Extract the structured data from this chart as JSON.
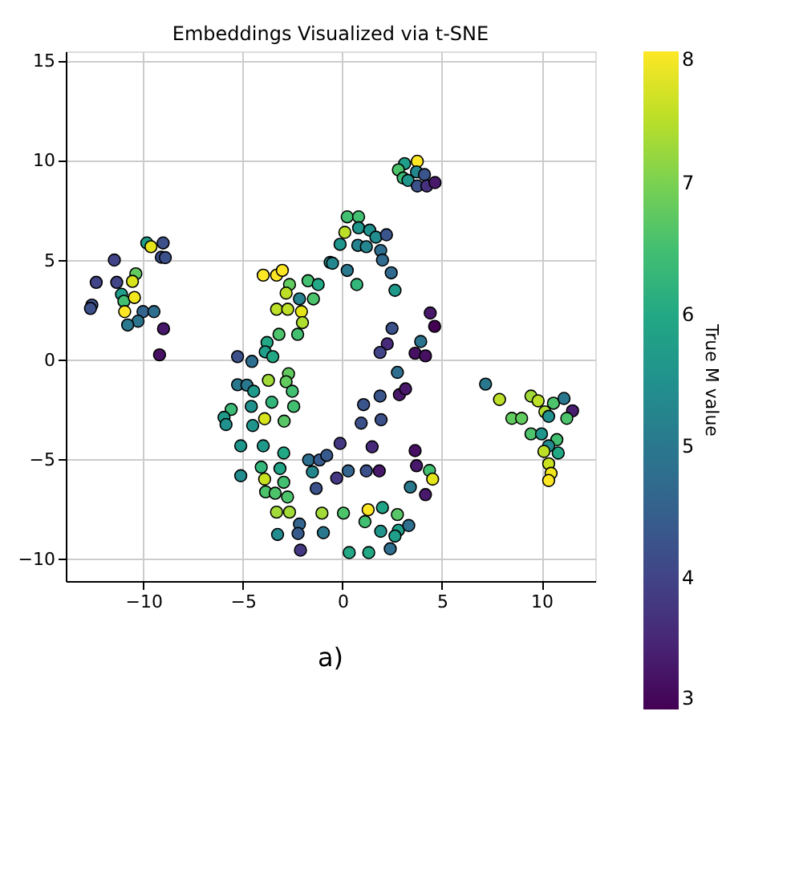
{
  "chart_data": {
    "type": "scatter",
    "title": "Embeddings Visualized via t-SNE",
    "clabel": "True M value",
    "annotations": [
      "a)"
    ],
    "xlim": [
      -13.9,
      12.7
    ],
    "ylim": [
      -11.1,
      15.5
    ],
    "xticks": [
      -10,
      -5,
      0,
      5,
      10
    ],
    "yticks": [
      -10,
      -5,
      0,
      5,
      10,
      15
    ],
    "clim": [
      3,
      8
    ],
    "cticks": [
      3,
      4,
      5,
      6,
      7,
      8
    ],
    "grid": true,
    "marker": "circle",
    "x": [
      -9.83,
      -9.62,
      -9.01,
      -9.1,
      -8.9,
      -11.46,
      -12.37,
      -11.34,
      -10.38,
      -10.55,
      -11.1,
      -10.98,
      -10.45,
      -10.94,
      -12.59,
      -12.66,
      -10.02,
      -9.47,
      -10.27,
      -10.79,
      -8.99,
      -9.19,
      0.24,
      0.81,
      0.12,
      0.81,
      1.37,
      1.68,
      2.21,
      -0.12,
      0.77,
      1.2,
      1.92,
      2.01,
      -0.62,
      -0.5,
      0.24,
      2.45,
      0.72,
      2.64,
      -3.98,
      -3.31,
      -3.02,
      -2.66,
      -2.83,
      -1.73,
      -1.22,
      -2.16,
      -1.46,
      -3.31,
      -2.75,
      -2.06,
      -2.01,
      -3.19,
      -2.25,
      -3.79,
      -3.88,
      -3.5,
      -5.27,
      -4.55,
      -3.72,
      -2.71,
      -2.83,
      -2.52,
      -5.27,
      -4.8,
      -4.46,
      -3.55,
      -2.45,
      -5.59,
      -5.95,
      -5.85,
      -4.58,
      -3.91,
      -2.93,
      -4.51,
      -5.11,
      -3.98,
      -2.95,
      -5.11,
      -4.08,
      -3.14,
      -3.91,
      -3.86,
      -3.38,
      -2.95,
      -2.76,
      -3.31,
      -2.66,
      -2.16,
      -2.23,
      -3.26,
      -2.11,
      -1.03,
      -0.96,
      -1.7,
      -1.15,
      -0.79,
      -1.51,
      -1.32,
      -0.12,
      -0.29,
      0.29,
      0.05,
      0.34,
      1.2,
      1.85,
      1.49,
      1.06,
      0.94,
      1.94,
      1.89,
      2.76,
      2.49,
      2.25,
      1.89,
      2.86,
      3.17,
      1.29,
      1.13,
      2.01,
      1.32,
      1.92,
      2.4,
      2.76,
      2.81,
      2.64,
      3.33,
      3.76,
      3.12,
      2.81,
      3.05,
      3.29,
      3.72,
      4.12,
      3.76,
      4.24,
      4.65,
      4.41,
      4.63,
      3.93,
      3.65,
      4.17,
      3.65,
      3.72,
      4.37,
      4.53,
      4.17,
      3.41,
      7.19,
      7.89,
      9.47,
      9.83,
      10.6,
      11.13,
      10.17,
      10.36,
      11.56,
      11.27,
      8.51,
      9.0,
      9.47,
      10.0,
      10.77,
      10.36,
      10.12,
      10.84,
      10.36,
      10.48,
      10.36
    ],
    "values": [
      5.88,
      5.69,
      5.88,
      5.16,
      5.14,
      5.02,
      3.9,
      3.9,
      4.33,
      3.95,
      3.3,
      2.95,
      3.14,
      2.43,
      2.76,
      2.59,
      2.43,
      2.43,
      1.95,
      1.76,
      1.57,
      0.26,
      7.19,
      7.19,
      6.41,
      6.64,
      6.52,
      6.17,
      6.29,
      5.81,
      5.76,
      5.69,
      5.5,
      5.02,
      4.9,
      4.86,
      4.5,
      4.38,
      3.79,
      3.5,
      4.26,
      4.26,
      4.5,
      3.79,
      3.36,
      3.98,
      3.79,
      3.07,
      3.07,
      2.55,
      2.55,
      2.43,
      1.88,
      1.29,
      1.29,
      0.88,
      0.41,
      0.17,
      0.17,
      -0.07,
      -1.02,
      -0.69,
      -1.09,
      -1.57,
      -1.24,
      -1.26,
      -1.57,
      -2.12,
      -2.33,
      -2.48,
      -2.88,
      -3.24,
      -2.33,
      -2.95,
      -3.07,
      -3.29,
      -4.31,
      -4.31,
      -4.67,
      -5.81,
      -5.38,
      -5.45,
      -5.98,
      -6.62,
      -6.69,
      -6.14,
      -6.88,
      -7.64,
      -7.64,
      -8.24,
      -8.71,
      -8.76,
      -9.55,
      -7.69,
      -8.67,
      -5.02,
      -5.02,
      -4.79,
      -5.62,
      -6.45,
      -4.19,
      -5.93,
      -5.57,
      -7.69,
      -9.67,
      -5.57,
      -5.57,
      -4.36,
      -2.24,
      -3.17,
      -3.0,
      -1.81,
      -0.62,
      1.59,
      0.81,
      0.38,
      -1.74,
      -1.45,
      -7.52,
      -8.12,
      -7.41,
      -9.67,
      -8.6,
      -9.48,
      -7.76,
      -8.55,
      -8.84,
      -8.31,
      9.98,
      9.86,
      9.55,
      9.14,
      9.02,
      9.45,
      9.31,
      8.74,
      8.74,
      8.91,
      2.36,
      1.69,
      0.93,
      0.34,
      0.21,
      -4.55,
      -5.31,
      -5.55,
      -5.98,
      -6.76,
      -6.38,
      -1.21,
      -1.98,
      -1.81,
      -2.05,
      -2.17,
      -1.93,
      -2.6,
      -2.83,
      -2.55,
      -2.93,
      -2.93,
      -2.93,
      -3.71,
      -3.71,
      -4.0,
      -4.31,
      -4.59,
      -4.67,
      -5.21,
      -5.69,
      -6.05
    ],
    "cvalues": [
      5.8,
      7.8,
      4.2,
      4.2,
      4.2,
      4.0,
      4.0,
      4.0,
      6.8,
      7.7,
      5.8,
      6.5,
      7.9,
      8.0,
      4.2,
      4.2,
      4.6,
      4.8,
      4.9,
      5.0,
      3.3,
      3.2,
      6.5,
      6.5,
      7.5,
      5.6,
      5.5,
      5.4,
      4.3,
      5.6,
      5.2,
      5.3,
      4.8,
      4.7,
      5.4,
      5.3,
      5.0,
      4.7,
      6.3,
      5.7,
      8.0,
      8.0,
      8.0,
      6.8,
      7.5,
      6.5,
      6.0,
      5.2,
      6.6,
      7.5,
      7.5,
      7.8,
      7.4,
      6.6,
      6.5,
      6.0,
      5.8,
      6.0,
      4.2,
      4.8,
      7.3,
      6.8,
      6.8,
      6.5,
      5.0,
      5.0,
      5.7,
      6.3,
      6.5,
      6.4,
      5.7,
      5.5,
      5.5,
      7.7,
      6.7,
      5.6,
      5.6,
      5.7,
      6.0,
      5.4,
      6.3,
      5.9,
      7.6,
      6.6,
      6.6,
      6.5,
      6.6,
      7.3,
      7.3,
      4.6,
      4.4,
      5.4,
      3.8,
      7.3,
      5.0,
      4.8,
      4.4,
      4.4,
      5.3,
      4.2,
      3.8,
      3.8,
      4.6,
      6.6,
      6.0,
      4.2,
      3.3,
      3.6,
      4.3,
      4.2,
      4.2,
      4.3,
      4.8,
      4.2,
      3.6,
      4.0,
      3.3,
      3.3,
      8.0,
      6.5,
      5.9,
      6.0,
      5.6,
      4.8,
      6.7,
      5.8,
      5.8,
      4.8,
      8.0,
      5.8,
      6.6,
      6.4,
      5.6,
      5.3,
      4.3,
      4.2,
      3.7,
      3.3,
      3.3,
      3.0,
      4.9,
      3.2,
      3.2,
      3.2,
      3.3,
      6.5,
      7.8,
      3.3,
      5.0,
      5.0,
      7.5,
      7.3,
      7.5,
      6.6,
      5.0,
      7.4,
      5.5,
      3.4,
      6.6,
      6.8,
      6.8,
      6.6,
      5.6,
      6.5,
      5.4,
      7.5,
      6.0,
      7.6,
      7.9,
      8.0
    ]
  }
}
